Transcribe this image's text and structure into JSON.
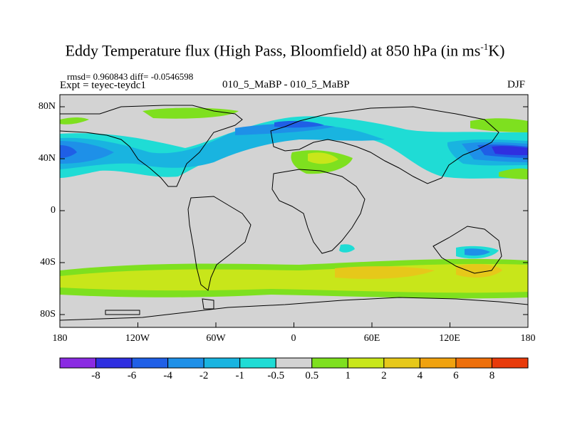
{
  "title": {
    "main": "Eddy Temperature flux (High Pass, Bloomfield) at 850 hPa (in ms",
    "superscript": "-1",
    "tail": "K)"
  },
  "stats": "rmsd= 0.960843 diff= -0.0546598",
  "expt": "Expt = teyec-teydc1",
  "center_label": "010_5_MaBP - 010_5_MaBP",
  "season": "DJF",
  "map": {
    "lat_ticks": [
      "80N",
      "40N",
      "0",
      "40S",
      "80S"
    ],
    "lon_ticks": [
      "180",
      "120W",
      "60W",
      "0",
      "60E",
      "120E",
      "180"
    ],
    "background_color": "#d3d3d3",
    "coastline_color": "#000000"
  },
  "colorbar": {
    "labels": [
      "-8",
      "-6",
      "-4",
      "-2",
      "-1",
      "-0.5",
      "0.5",
      "1",
      "2",
      "4",
      "6",
      "8"
    ],
    "colors": [
      "#8a2be2",
      "#2f2fe0",
      "#1f5fe6",
      "#1e90e8",
      "#19b4e0",
      "#1fdcd5",
      "#d3d3d3",
      "#7ee01f",
      "#c8e61a",
      "#e6c81a",
      "#f0a20f",
      "#ee6f0a",
      "#e83a0a"
    ]
  }
}
